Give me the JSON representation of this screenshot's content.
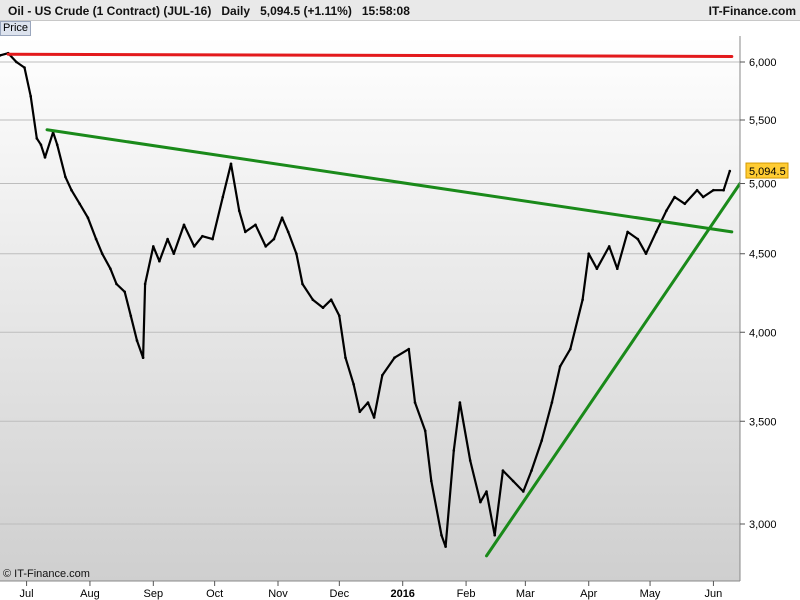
{
  "header": {
    "instrument": "Oil - US Crude (1 Contract) (JUL-16)",
    "period": "Daily",
    "last_change": "5,094.5 (+1.11%)",
    "time": "15:58:08",
    "brand": "IT-Finance.com"
  },
  "price_tab": "Price",
  "credit": "© IT-Finance.com",
  "chart_data": {
    "type": "line",
    "ylabel": "Price",
    "y_scale": "log",
    "ylim": [
      2750,
      6300
    ],
    "y_ticks": [
      3000,
      3500,
      4000,
      4500,
      5000,
      5500,
      6000
    ],
    "y_tick_labels": [
      "3,000",
      "3,500",
      "4,000",
      "4,500",
      "5,000",
      "5,500",
      "6,000"
    ],
    "x_ticks": [
      "Jul",
      "Aug",
      "Sep",
      "Oct",
      "Nov",
      "Dec",
      "2016",
      "Feb",
      "Mar",
      "Apr",
      "May",
      "Jun"
    ],
    "x_tick_dates": [
      "2015-07-01",
      "2015-08-01",
      "2015-09-01",
      "2015-10-01",
      "2015-11-01",
      "2015-12-01",
      "2016-01-01",
      "2016-02-01",
      "2016-03-01",
      "2016-04-01",
      "2016-05-01",
      "2016-06-01"
    ],
    "xlim": [
      "2015-06-18",
      "2016-06-14"
    ],
    "last_price_label": "5,094.5",
    "last_price": 5094.5,
    "grid": true,
    "series": [
      {
        "x": [
          "2015-06-18",
          "2015-06-22",
          "2015-06-26",
          "2015-06-30",
          "2015-07-03",
          "2015-07-06",
          "2015-07-08",
          "2015-07-10",
          "2015-07-14",
          "2015-07-16",
          "2015-07-20",
          "2015-07-23",
          "2015-07-27",
          "2015-07-31",
          "2015-08-04",
          "2015-08-07",
          "2015-08-11",
          "2015-08-14",
          "2015-08-18",
          "2015-08-21",
          "2015-08-24",
          "2015-08-27",
          "2015-08-28",
          "2015-09-01",
          "2015-09-04",
          "2015-09-08",
          "2015-09-11",
          "2015-09-16",
          "2015-09-21",
          "2015-09-25",
          "2015-09-30",
          "2015-10-05",
          "2015-10-09",
          "2015-10-13",
          "2015-10-16",
          "2015-10-21",
          "2015-10-26",
          "2015-10-30",
          "2015-11-03",
          "2015-11-06",
          "2015-11-10",
          "2015-11-13",
          "2015-11-18",
          "2015-11-23",
          "2015-11-27",
          "2015-12-01",
          "2015-12-04",
          "2015-12-08",
          "2015-12-11",
          "2015-12-15",
          "2015-12-18",
          "2015-12-22",
          "2015-12-28",
          "2016-01-04",
          "2016-01-07",
          "2016-01-12",
          "2016-01-15",
          "2016-01-20",
          "2016-01-22",
          "2016-01-26",
          "2016-01-29",
          "2016-02-03",
          "2016-02-08",
          "2016-02-11",
          "2016-02-15",
          "2016-02-19",
          "2016-02-24",
          "2016-02-29",
          "2016-03-04",
          "2016-03-09",
          "2016-03-14",
          "2016-03-18",
          "2016-03-23",
          "2016-03-29",
          "2016-04-01",
          "2016-04-05",
          "2016-04-11",
          "2016-04-15",
          "2016-04-20",
          "2016-04-25",
          "2016-04-29",
          "2016-05-04",
          "2016-05-09",
          "2016-05-13",
          "2016-05-18",
          "2016-05-24",
          "2016-05-27",
          "2016-06-01",
          "2016-06-06",
          "2016-06-09"
        ],
        "values": [
          6060,
          6080,
          6000,
          5950,
          5700,
          5350,
          5300,
          5200,
          5400,
          5300,
          5050,
          4950,
          4850,
          4750,
          4600,
          4500,
          4400,
          4300,
          4250,
          4100,
          3950,
          3850,
          4300,
          4550,
          4450,
          4600,
          4500,
          4700,
          4550,
          4620,
          4600,
          4900,
          5150,
          4800,
          4650,
          4700,
          4550,
          4600,
          4750,
          4650,
          4500,
          4300,
          4200,
          4150,
          4200,
          4100,
          3850,
          3700,
          3550,
          3600,
          3520,
          3750,
          3850,
          3900,
          3600,
          3450,
          3200,
          2950,
          2900,
          3350,
          3600,
          3300,
          3100,
          3150,
          2950,
          3250,
          3200,
          3150,
          3250,
          3400,
          3600,
          3800,
          3900,
          4200,
          4500,
          4400,
          4550,
          4400,
          4650,
          4600,
          4500,
          4650,
          4800,
          4900,
          4850,
          4950,
          4900,
          4950,
          4950,
          5094.5
        ]
      }
    ],
    "trendlines": [
      {
        "color": "#e31a1c",
        "from": [
          "2015-06-22",
          6070
        ],
        "to": [
          "2016-06-10",
          6050
        ]
      },
      {
        "color": "#1a8a1a",
        "from": [
          "2015-07-11",
          5420
        ],
        "to": [
          "2016-06-10",
          4650
        ]
      },
      {
        "color": "#1a8a1a",
        "from": [
          "2016-02-11",
          2860
        ],
        "to": [
          "2016-06-14",
          5000
        ]
      }
    ]
  }
}
